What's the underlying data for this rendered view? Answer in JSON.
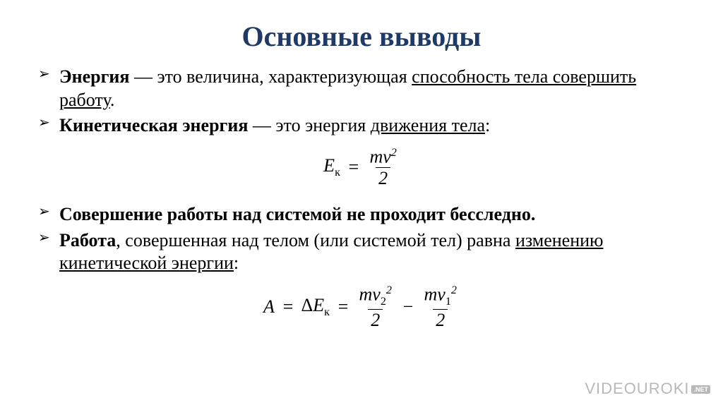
{
  "title": {
    "text": "Основные выводы",
    "color": "#1f3a66",
    "fontsize": 40
  },
  "body_fontsize": 26,
  "formula_fontsize": 26,
  "bullets": [
    {
      "bold": "Энергия",
      "rest1": " — это величина, характеризующая ",
      "under": "способность тела совершить работу",
      "rest2": "."
    },
    {
      "bold": "Кинетическая энергия",
      "rest1": " — это энергия ",
      "under": "движения тела",
      "rest2": ":"
    },
    {
      "bold": "Совершение работы над системой не проходит бесследно."
    },
    {
      "bold": "Работа",
      "rest1": ", совершенная над телом (или системой тел) равна ",
      "under": "изменению кинетической энергии",
      "rest2": ":"
    }
  ],
  "formula1": {
    "lhs_sym": "E",
    "lhs_sub": "к",
    "eq": "=",
    "num": "mv",
    "num_sup": "2",
    "den": "2"
  },
  "formula2": {
    "A": "A",
    "eq1": "=",
    "delta": "Δ",
    "E": "E",
    "E_sub": "к",
    "eq2": "=",
    "t1_num_base": "mv",
    "t1_num_sub": "2",
    "t1_num_sup": "2",
    "t1_den": "2",
    "minus": "−",
    "t2_num_base": "mv",
    "t2_num_sub": "1",
    "t2_num_sup": "2",
    "t2_den": "2"
  },
  "watermark": {
    "brand": "VIDEOUROKI",
    "suffix": ".NET",
    "fontsize": 22
  }
}
